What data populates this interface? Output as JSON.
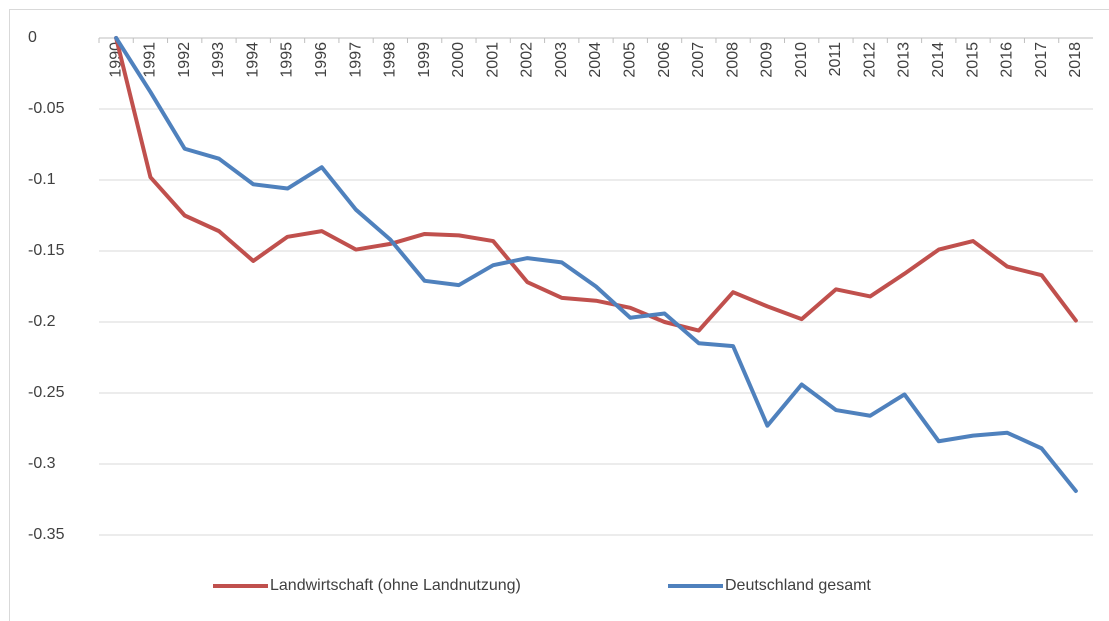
{
  "chart_data": {
    "type": "line",
    "categories": [
      "1990",
      "1991",
      "1992",
      "1993",
      "1994",
      "1995",
      "1996",
      "1997",
      "1998",
      "1999",
      "2000",
      "2001",
      "2002",
      "2003",
      "2004",
      "2005",
      "2006",
      "2007",
      "2008",
      "2009",
      "2010",
      "2011",
      "2012",
      "2013",
      "2014",
      "2015",
      "2016",
      "2017",
      "2018"
    ],
    "series": [
      {
        "name": "Landwirtschaft (ohne Landnutzung)",
        "color": "#c0504d",
        "values": [
          0,
          -0.098,
          -0.125,
          -0.136,
          -0.157,
          -0.14,
          -0.136,
          -0.149,
          -0.145,
          -0.138,
          -0.139,
          -0.143,
          -0.172,
          -0.183,
          -0.185,
          -0.19,
          -0.2,
          -0.206,
          -0.179,
          -0.189,
          -0.198,
          -0.177,
          -0.182,
          -0.166,
          -0.149,
          -0.143,
          -0.161,
          -0.167,
          -0.199
        ]
      },
      {
        "name": "Deutschland gesamt",
        "color": "#4f81bd",
        "values": [
          0,
          -0.038,
          -0.078,
          -0.085,
          -0.103,
          -0.106,
          -0.091,
          -0.121,
          -0.142,
          -0.171,
          -0.174,
          -0.16,
          -0.155,
          -0.158,
          -0.175,
          -0.197,
          -0.194,
          -0.215,
          -0.217,
          -0.273,
          -0.244,
          -0.262,
          -0.266,
          -0.251,
          -0.284,
          -0.28,
          -0.278,
          -0.289,
          -0.319
        ]
      }
    ],
    "ylim": [
      -0.35,
      0
    ],
    "yticks": [
      0,
      -0.05,
      -0.1,
      -0.15,
      -0.2,
      -0.25,
      -0.3,
      -0.35
    ],
    "grid": true,
    "legend": "bottom"
  }
}
